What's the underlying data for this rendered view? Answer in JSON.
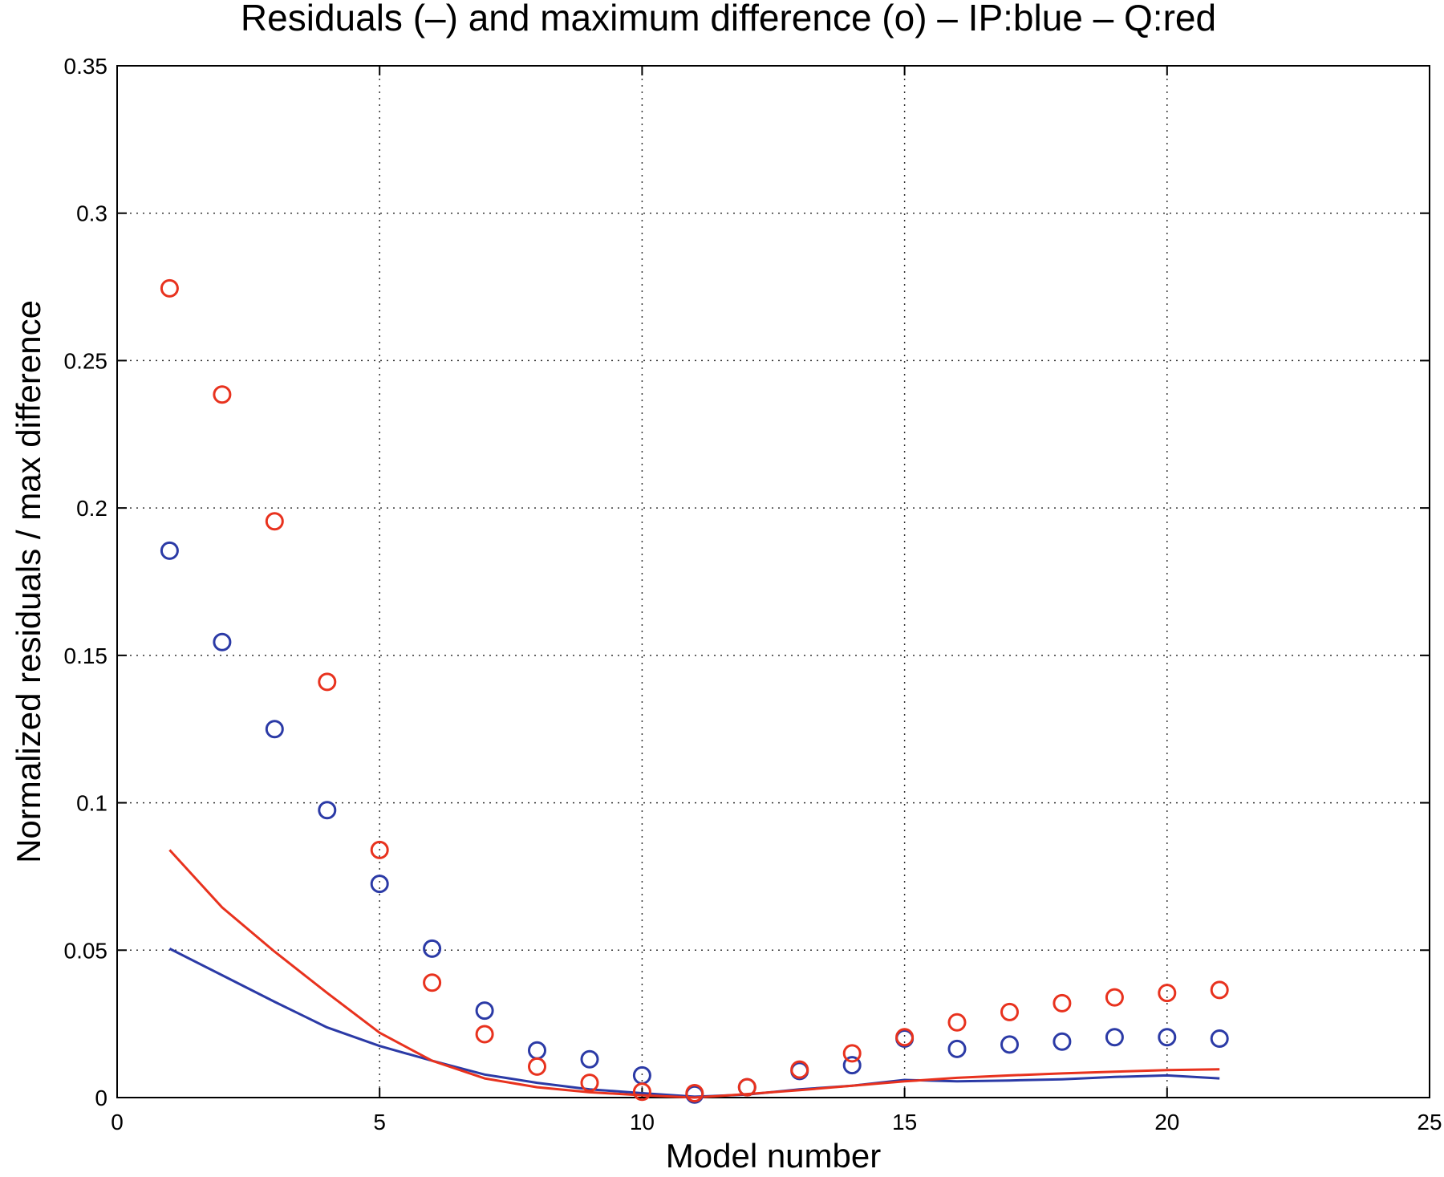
{
  "chart_data": {
    "type": "line",
    "title": "Residuals (–) and maximum difference (o) – IP:blue – Q:red",
    "xlabel": "Model number",
    "ylabel": "Normalized residuals / max difference",
    "xlim": [
      0,
      25
    ],
    "ylim": [
      0,
      0.35
    ],
    "xticks": [
      "0",
      "5",
      "10",
      "15",
      "20",
      "25"
    ],
    "yticks": [
      "0",
      "0.05",
      "0.1",
      "0.15",
      "0.2",
      "0.25",
      "0.3",
      "0.35"
    ],
    "grid": true,
    "colors": {
      "IP": "#2b3aa6",
      "Q": "#e8321e"
    },
    "series": [
      {
        "key": "IP-residuals",
        "style": "line",
        "color": "#2b3aa6",
        "x": [
          1,
          2,
          3,
          4,
          5,
          6,
          7,
          8,
          9,
          10,
          11,
          12,
          13,
          14,
          15,
          16,
          17,
          18,
          19,
          20,
          21
        ],
        "values": [
          0.0505,
          0.0415,
          0.0325,
          0.0238,
          0.0175,
          0.0125,
          0.0078,
          0.005,
          0.0028,
          0.0015,
          0.0003,
          0.001,
          0.0028,
          0.004,
          0.006,
          0.0055,
          0.0058,
          0.0062,
          0.007,
          0.0075,
          0.0065
        ]
      },
      {
        "key": "Q-residuals",
        "style": "line",
        "color": "#e8321e",
        "x": [
          1,
          2,
          3,
          4,
          5,
          6,
          7,
          8,
          9,
          10,
          11,
          12,
          13,
          14,
          15,
          16,
          17,
          18,
          19,
          20,
          21
        ],
        "values": [
          0.084,
          0.0645,
          0.0495,
          0.0355,
          0.022,
          0.0125,
          0.0065,
          0.0035,
          0.0018,
          0.0008,
          0.0,
          0.0012,
          0.0025,
          0.004,
          0.0055,
          0.0067,
          0.0075,
          0.0082,
          0.0088,
          0.0093,
          0.0096
        ]
      },
      {
        "key": "IP-max-difference",
        "style": "marker",
        "color": "#2b3aa6",
        "x": [
          1,
          2,
          3,
          4,
          5,
          6,
          7,
          8,
          9,
          10,
          11,
          12,
          13,
          14,
          15,
          16,
          17,
          18,
          19,
          20,
          21
        ],
        "values": [
          0.1855,
          0.1545,
          0.125,
          0.0975,
          0.0725,
          0.0505,
          0.0295,
          0.016,
          0.013,
          0.0075,
          0.001,
          0.0035,
          0.009,
          0.011,
          0.02,
          0.0165,
          0.018,
          0.019,
          0.0205,
          0.0205,
          0.02
        ]
      },
      {
        "key": "Q-max-difference",
        "style": "marker",
        "color": "#e8321e",
        "x": [
          1,
          2,
          3,
          4,
          5,
          6,
          7,
          8,
          9,
          10,
          11,
          12,
          13,
          14,
          15,
          16,
          17,
          18,
          19,
          20,
          21
        ],
        "values": [
          0.2745,
          0.2385,
          0.1955,
          0.141,
          0.084,
          0.039,
          0.0215,
          0.0105,
          0.005,
          0.002,
          0.0015,
          0.0035,
          0.0095,
          0.015,
          0.0205,
          0.0255,
          0.029,
          0.032,
          0.034,
          0.0355,
          0.0365
        ]
      }
    ]
  }
}
